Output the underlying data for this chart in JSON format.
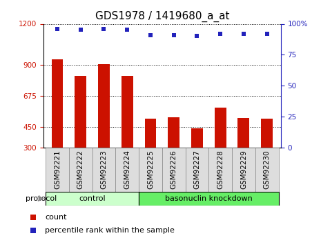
{
  "title": "GDS1978 / 1419680_a_at",
  "samples": [
    "GSM92221",
    "GSM92222",
    "GSM92223",
    "GSM92224",
    "GSM92225",
    "GSM92226",
    "GSM92227",
    "GSM92228",
    "GSM92229",
    "GSM92230"
  ],
  "counts": [
    940,
    820,
    905,
    820,
    510,
    520,
    440,
    590,
    515,
    510
  ],
  "percentile_ranks": [
    96,
    95,
    96,
    95,
    91,
    91,
    90,
    92,
    92,
    92
  ],
  "bar_color": "#cc1100",
  "dot_color": "#2222bb",
  "left_yticks": [
    300,
    450,
    675,
    900,
    1200
  ],
  "right_yticks": [
    0,
    25,
    50,
    75,
    100
  ],
  "ylim_left": [
    300,
    1200
  ],
  "ylim_right": [
    0,
    100
  ],
  "groups": [
    {
      "label": "control",
      "start": 0,
      "end": 4
    },
    {
      "label": "basonuclin knockdown",
      "start": 4,
      "end": 10
    }
  ],
  "group_colors": [
    "#ccffcc",
    "#66ee66"
  ],
  "protocol_label": "protocol",
  "legend_items": [
    {
      "label": "count",
      "color": "#cc1100"
    },
    {
      "label": "percentile rank within the sample",
      "color": "#2222bb"
    }
  ],
  "tick_label_color_left": "#cc1100",
  "tick_label_color_right": "#2222bb",
  "title_fontsize": 11,
  "bar_width": 0.5,
  "xlim": [
    -0.6,
    9.6
  ]
}
